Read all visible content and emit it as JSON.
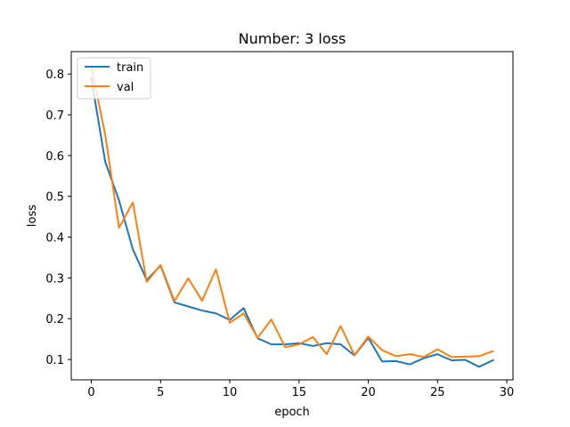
{
  "chart_data": {
    "type": "line",
    "title": "Number: 3 loss",
    "xlabel": "epoch",
    "ylabel": "loss",
    "xlim": [
      -1.45,
      30.45
    ],
    "ylim": [
      0.05,
      0.855
    ],
    "xticks": [
      0,
      5,
      10,
      15,
      20,
      25,
      30
    ],
    "yticks": [
      0.1,
      0.2,
      0.3,
      0.4,
      0.5,
      0.6,
      0.7,
      0.8
    ],
    "grid": false,
    "legend_position": "top-left",
    "x": [
      0,
      1,
      2,
      3,
      4,
      5,
      6,
      7,
      8,
      9,
      10,
      11,
      12,
      13,
      14,
      15,
      16,
      17,
      18,
      19,
      20,
      21,
      22,
      23,
      24,
      25,
      26,
      27,
      28,
      29
    ],
    "series": [
      {
        "name": "train",
        "color": "#1f77b4",
        "values": [
          0.79,
          0.585,
          0.49,
          0.37,
          0.295,
          0.33,
          0.24,
          0.23,
          0.22,
          0.213,
          0.197,
          0.226,
          0.152,
          0.137,
          0.137,
          0.14,
          0.133,
          0.14,
          0.137,
          0.11,
          0.153,
          0.095,
          0.096,
          0.088,
          0.103,
          0.113,
          0.098,
          0.099,
          0.082,
          0.098
        ]
      },
      {
        "name": "val",
        "color": "#ff7f0e",
        "values": [
          0.817,
          0.652,
          0.423,
          0.485,
          0.29,
          0.332,
          0.243,
          0.299,
          0.244,
          0.321,
          0.19,
          0.213,
          0.153,
          0.198,
          0.13,
          0.137,
          0.155,
          0.113,
          0.182,
          0.111,
          0.156,
          0.123,
          0.108,
          0.113,
          0.106,
          0.125,
          0.106,
          0.107,
          0.108,
          0.12
        ]
      }
    ]
  }
}
